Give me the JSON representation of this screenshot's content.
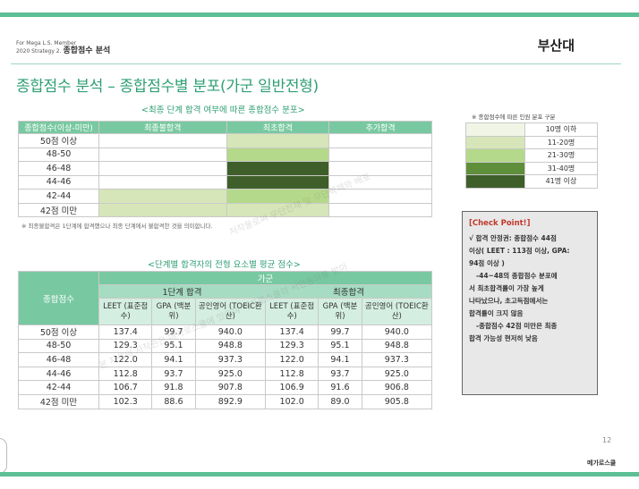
{
  "header": {
    "line1": "For Mega L.S. Member",
    "line2_prefix": "2020 Strategy 2.",
    "line2_title": "종합점수 분석",
    "school": "부산대"
  },
  "title": "종합점수 분석 – 종합점수별 분포(가군 일반전형)",
  "section1": {
    "title": "<최종 단계 합격 여부에 따른 종합점수 분포>",
    "headers": [
      "종합점수(이상-미만)",
      "최종불합격",
      "최초합격",
      "추가합격"
    ],
    "rows": [
      {
        "label": "50점 이상",
        "cells": [
          "#ffffff",
          "#d6e6b8",
          "#ffffff"
        ]
      },
      {
        "label": "48-50",
        "cells": [
          "#ffffff",
          "#b5d98a",
          "#ffffff"
        ]
      },
      {
        "label": "46-48",
        "cells": [
          "#ffffff",
          "#3f5f2a",
          "#ffffff"
        ]
      },
      {
        "label": "44-46",
        "cells": [
          "#ffffff",
          "#3f5f2a",
          "#ffffff"
        ]
      },
      {
        "label": "42-44",
        "cells": [
          "#d6e6b8",
          "#b5d98a",
          "#ffffff"
        ]
      },
      {
        "label": "42점 미만",
        "cells": [
          "#d6e6b8",
          "#d6e6b8",
          "#ffffff"
        ]
      }
    ],
    "note": "※ 최종불합격은 1단계에 합격했으나 최종 단계에서 불합격한 것을 의미합니다."
  },
  "legend": {
    "title": "※ 종합점수에 따른 인원 분포 구분",
    "items": [
      {
        "label": "10명 이하",
        "color": "#f0f5e6"
      },
      {
        "label": "11-20명",
        "color": "#d6e6b8"
      },
      {
        "label": "21-30명",
        "color": "#b5d98a"
      },
      {
        "label": "31-40명",
        "color": "#5f8f3a"
      },
      {
        "label": "41명 이상",
        "color": "#3f5f2a"
      }
    ]
  },
  "section2": {
    "title": "<단계별 합격자의 전형 요소별 평균 점수>",
    "row_header": "종합점수",
    "group": "가군",
    "stage1": "1단계 합격",
    "final": "최종합격",
    "cols": [
      "LEET (표준점수)",
      "GPA (백분위)",
      "공인영어 (TOEIC환산)",
      "LEET (표준점수)",
      "GPA (백분위)",
      "공인영어 (TOEIC환산)"
    ],
    "rows": [
      {
        "label": "50점 이상",
        "values": [
          "137.4",
          "99.7",
          "940.0",
          "137.4",
          "99.7",
          "940.0"
        ]
      },
      {
        "label": "48-50",
        "values": [
          "129.3",
          "95.1",
          "948.8",
          "129.3",
          "95.1",
          "948.8"
        ]
      },
      {
        "label": "46-48",
        "values": [
          "122.0",
          "94.1",
          "937.3",
          "122.0",
          "94.1",
          "937.3"
        ]
      },
      {
        "label": "44-46",
        "values": [
          "112.8",
          "93.7",
          "925.0",
          "112.8",
          "93.7",
          "925.0"
        ]
      },
      {
        "label": "42-44",
        "values": [
          "106.7",
          "91.8",
          "907.8",
          "106.9",
          "91.6",
          "906.8"
        ]
      },
      {
        "label": "42점 미만",
        "values": [
          "102.3",
          "88.6",
          "892.9",
          "102.0",
          "89.0",
          "905.8"
        ]
      }
    ]
  },
  "checkpoint": {
    "title": "[Check Point!]",
    "lines": [
      "√ 합격 안정권: 종합점수 44점",
      "이상( LEET : 113점 이상, GPA:",
      "94점 이상 )",
      "-44~48의 종합점수 분포에",
      "서 최초합격률이 가장 높게",
      "나타났으나, 초고득점에서는",
      "합격률이 크지 않음",
      "-종합점수 42점 미만은 최종",
      "합격 가능성 현저히 낮음"
    ]
  },
  "watermark1": "저작물로써 무단전재 및 무단복제와 배포",
  "watermark2": "본 자료의 저작권은 메가로스쿨에 있으며 메가로스쿨의 서면동의를 받아",
  "page_number": "12",
  "brand": "메가로스쿨"
}
